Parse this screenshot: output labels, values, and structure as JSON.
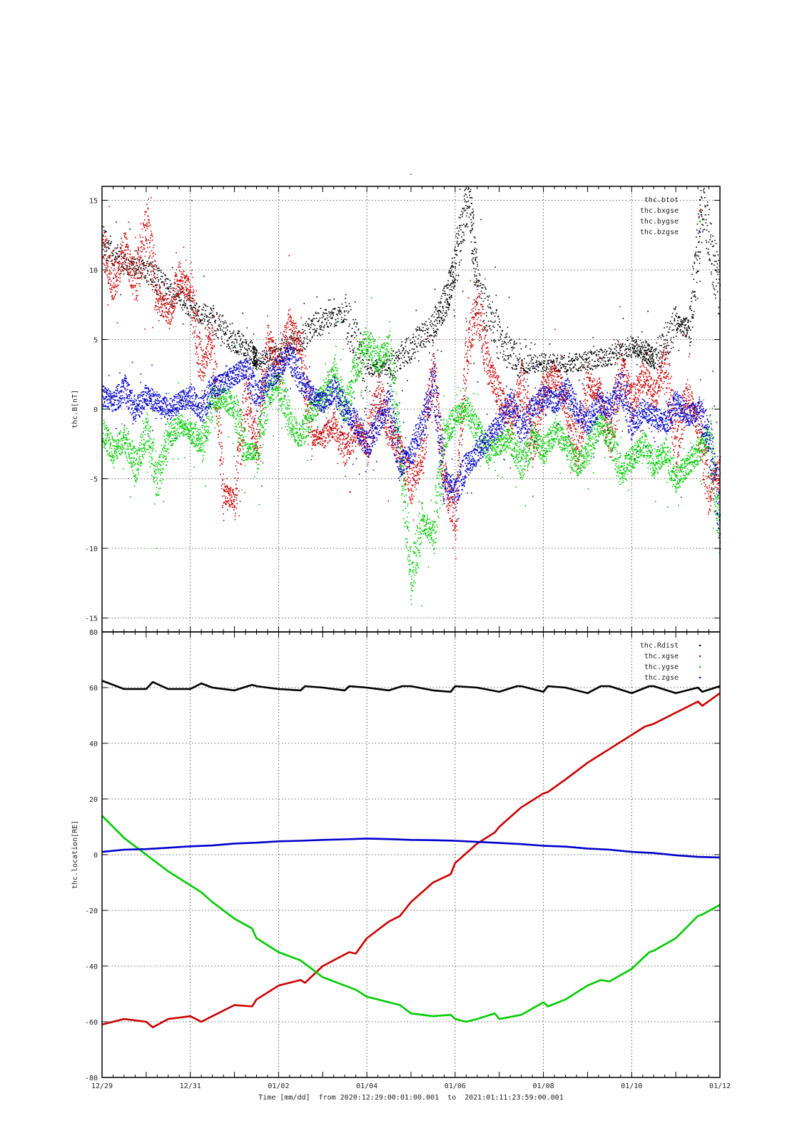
{
  "figure": {
    "title_mark": "-",
    "xlabel": "Time [mm/dd]  from 2020:12:29:00:01:00.001  to  2021:01:11:23:59:00.001"
  },
  "chart_data": [
    {
      "type": "scatter",
      "title": "",
      "xlabel": "",
      "ylabel": "thc.B[nT]",
      "x_unit": "days since 2020-12-29 00:00",
      "xlim": [
        0,
        14
      ],
      "ylim": [
        -16,
        16
      ],
      "yticks": [
        15,
        10,
        5,
        0,
        -5,
        -10,
        -15
      ],
      "grid": true,
      "legend_position": "top-right",
      "series": [
        {
          "name": "thc.btot",
          "color": "#000000",
          "x": [
            0.0,
            0.5,
            1.0,
            1.5,
            2.0,
            2.5,
            3.0,
            3.4,
            3.5,
            4.0,
            4.5,
            5.0,
            5.5,
            6.0,
            6.5,
            7.0,
            7.5,
            7.8,
            8.0,
            8.3,
            8.5,
            9.0,
            9.5,
            10.0,
            10.5,
            11.0,
            11.5,
            12.0,
            12.3,
            12.5,
            13.0,
            13.3,
            13.6,
            14.0
          ],
          "y": [
            12.0,
            10.5,
            10.0,
            8.5,
            7.5,
            6.5,
            5.0,
            4.0,
            3.5,
            4.0,
            5.0,
            6.5,
            6.8,
            3.0,
            3.0,
            4.5,
            6.0,
            8.0,
            10.5,
            15.5,
            8.5,
            5.0,
            3.2,
            3.4,
            3.3,
            3.5,
            3.8,
            4.5,
            4.2,
            3.6,
            6.2,
            5.8,
            15.0,
            8.0
          ]
        },
        {
          "name": "thc.bxgse",
          "color": "#cc0000",
          "x": [
            0.0,
            0.25,
            0.5,
            0.75,
            1.0,
            1.25,
            1.5,
            1.75,
            2.0,
            2.25,
            2.5,
            2.75,
            3.0,
            3.25,
            3.5,
            3.75,
            4.0,
            4.25,
            4.5,
            4.75,
            5.0,
            5.25,
            5.5,
            5.75,
            6.0,
            6.25,
            6.5,
            6.75,
            7.0,
            7.25,
            7.5,
            7.75,
            8.0,
            8.25,
            8.5,
            8.75,
            9.0,
            9.25,
            9.5,
            9.75,
            10.0,
            10.25,
            10.5,
            10.75,
            11.0,
            11.25,
            11.5,
            11.75,
            12.0,
            12.25,
            12.5,
            12.75,
            13.0,
            13.25,
            13.5,
            13.75,
            14.0
          ],
          "y": [
            12.0,
            9.0,
            11.5,
            9.0,
            13.0,
            8.0,
            7.0,
            9.5,
            8.5,
            3.0,
            5.0,
            -6.0,
            -6.5,
            1.0,
            -2.5,
            5.0,
            3.0,
            6.0,
            4.5,
            -2.0,
            -2.0,
            -1.0,
            -3.0,
            -1.5,
            -2.5,
            1.5,
            -1.5,
            -3.0,
            -5.5,
            -3.0,
            3.0,
            -5.0,
            -8.0,
            4.0,
            7.5,
            3.0,
            1.0,
            -1.0,
            2.0,
            -2.5,
            1.5,
            2.5,
            0.5,
            -3.0,
            2.0,
            1.0,
            -2.0,
            3.0,
            0.5,
            2.5,
            1.0,
            3.5,
            -2.5,
            1.0,
            -1.0,
            -6.0,
            -4.0
          ]
        },
        {
          "name": "thc.bygse",
          "color": "#00cc00",
          "x": [
            0.0,
            0.25,
            0.5,
            0.75,
            1.0,
            1.25,
            1.5,
            1.75,
            2.0,
            2.25,
            2.5,
            2.75,
            3.0,
            3.25,
            3.5,
            3.75,
            4.0,
            4.25,
            4.5,
            4.75,
            5.0,
            5.25,
            5.5,
            5.75,
            6.0,
            6.25,
            6.5,
            6.75,
            7.0,
            7.25,
            7.5,
            7.75,
            8.0,
            8.25,
            8.5,
            8.75,
            9.0,
            9.25,
            9.5,
            9.75,
            10.0,
            10.25,
            10.5,
            10.75,
            11.0,
            11.25,
            11.5,
            11.75,
            12.0,
            12.25,
            12.5,
            12.75,
            13.0,
            13.25,
            13.5,
            13.75,
            14.0
          ],
          "y": [
            -1.5,
            -3.0,
            -2.0,
            -4.0,
            -1.5,
            -5.0,
            -2.0,
            -1.0,
            -1.5,
            -2.5,
            0.5,
            1.0,
            0.0,
            -3.0,
            -3.0,
            1.0,
            2.0,
            -1.0,
            -2.0,
            0.0,
            1.0,
            2.5,
            0.0,
            3.0,
            5.0,
            3.5,
            4.5,
            -3.0,
            -12.0,
            -8.0,
            -9.0,
            -2.0,
            -0.5,
            0.0,
            -1.5,
            -3.0,
            -2.5,
            -2.0,
            -4.0,
            -2.0,
            -3.0,
            -1.5,
            -2.5,
            -4.0,
            -3.0,
            -1.0,
            -2.0,
            -4.5,
            -3.5,
            -2.5,
            -4.0,
            -3.0,
            -5.0,
            -4.0,
            -3.0,
            -2.0,
            -9.0
          ]
        },
        {
          "name": "thc.bzgse",
          "color": "#0000cc",
          "x": [
            0.0,
            0.25,
            0.5,
            0.75,
            1.0,
            1.25,
            1.5,
            1.75,
            2.0,
            2.25,
            2.5,
            2.75,
            3.0,
            3.25,
            3.5,
            3.75,
            4.0,
            4.25,
            4.5,
            4.75,
            5.0,
            5.25,
            5.5,
            5.75,
            6.0,
            6.25,
            6.5,
            6.75,
            7.0,
            7.25,
            7.5,
            7.75,
            8.0,
            8.25,
            8.5,
            8.75,
            9.0,
            9.25,
            9.5,
            9.75,
            10.0,
            10.25,
            10.5,
            10.75,
            11.0,
            11.25,
            11.5,
            11.75,
            12.0,
            12.25,
            12.5,
            12.75,
            13.0,
            13.25,
            13.5,
            13.75,
            14.0
          ],
          "y": [
            1.0,
            0.5,
            1.5,
            0.0,
            1.0,
            0.5,
            0.0,
            0.5,
            1.0,
            0.0,
            1.5,
            2.0,
            2.5,
            3.0,
            1.0,
            2.0,
            3.0,
            4.0,
            2.0,
            1.0,
            0.5,
            1.5,
            0.0,
            -1.0,
            -2.5,
            -1.0,
            0.5,
            -4.0,
            -3.0,
            -1.0,
            2.0,
            -5.0,
            -6.0,
            -4.0,
            -3.0,
            -2.0,
            -1.0,
            0.5,
            -1.5,
            0.0,
            1.0,
            0.5,
            1.5,
            0.0,
            -1.0,
            0.5,
            0.0,
            2.0,
            -1.0,
            0.0,
            -0.5,
            -1.0,
            0.5,
            -0.5,
            0.0,
            -2.0,
            -8.0
          ]
        }
      ]
    },
    {
      "type": "line",
      "title": "",
      "xlabel": "",
      "ylabel": "thc.location[RE]",
      "x_unit": "days since 2020-12-29 00:00",
      "xlim": [
        0,
        14
      ],
      "ylim": [
        -80,
        80
      ],
      "yticks": [
        80,
        60,
        40,
        20,
        0,
        -20,
        -40,
        -60,
        -80
      ],
      "xticks": [
        {
          "x": 0,
          "label": "12/29"
        },
        {
          "x": 2,
          "label": "12/31"
        },
        {
          "x": 4,
          "label": "01/02"
        },
        {
          "x": 6,
          "label": "01/04"
        },
        {
          "x": 8,
          "label": "01/06"
        },
        {
          "x": 10,
          "label": "01/08"
        },
        {
          "x": 12,
          "label": "01/10"
        },
        {
          "x": 14,
          "label": "01/12"
        }
      ],
      "grid": true,
      "legend_position": "top-right",
      "series": [
        {
          "name": "thc.Rdist",
          "color": "#000000",
          "x": [
            0.0,
            0.5,
            1.0,
            1.15,
            1.5,
            2.0,
            2.25,
            2.5,
            3.0,
            3.4,
            3.5,
            4.0,
            4.5,
            4.6,
            5.0,
            5.5,
            5.6,
            6.0,
            6.5,
            6.8,
            7.0,
            7.5,
            7.9,
            8.0,
            8.5,
            9.0,
            9.4,
            9.5,
            10.0,
            10.1,
            10.5,
            11.0,
            11.3,
            11.5,
            12.0,
            12.4,
            12.5,
            13.0,
            13.5,
            13.6,
            14.0
          ],
          "y": [
            62.5,
            59.5,
            59.5,
            62.0,
            59.5,
            59.5,
            61.5,
            60.0,
            59.0,
            61.0,
            60.5,
            59.5,
            59.0,
            60.5,
            60.0,
            59.0,
            60.5,
            60.0,
            59.0,
            60.5,
            60.5,
            59.0,
            58.5,
            60.5,
            60.0,
            58.5,
            60.5,
            60.5,
            58.5,
            60.5,
            60.0,
            58.0,
            60.5,
            60.5,
            58.0,
            60.5,
            60.5,
            58.0,
            60.0,
            58.5,
            60.5
          ]
        },
        {
          "name": "thc.xgse",
          "color": "#cc0000",
          "x": [
            0.0,
            0.5,
            1.0,
            1.15,
            1.5,
            2.0,
            2.25,
            2.5,
            3.0,
            3.4,
            3.5,
            4.0,
            4.5,
            4.6,
            5.0,
            5.6,
            5.75,
            6.0,
            6.5,
            6.75,
            7.0,
            7.5,
            7.9,
            8.0,
            8.5,
            8.9,
            9.0,
            9.5,
            10.0,
            10.1,
            10.5,
            11.0,
            11.25,
            11.5,
            12.0,
            12.3,
            12.5,
            13.0,
            13.5,
            13.6,
            14.0
          ],
          "y": [
            -61.0,
            -59.0,
            -60.0,
            -62.0,
            -59.0,
            -58.0,
            -60.0,
            -58.0,
            -54.0,
            -54.5,
            -52.0,
            -47.0,
            -45.0,
            -46.0,
            -40.0,
            -35.0,
            -35.5,
            -30.0,
            -24.0,
            -22.0,
            -17.0,
            -10.0,
            -7.0,
            -3.0,
            4.0,
            8.0,
            10.0,
            17.0,
            22.0,
            22.5,
            27.0,
            33.0,
            35.5,
            38.0,
            43.0,
            46.0,
            47.0,
            51.0,
            55.0,
            53.5,
            58.0
          ]
        },
        {
          "name": "thc.ygse",
          "color": "#00cc00",
          "x": [
            0.0,
            0.5,
            1.0,
            1.5,
            2.0,
            2.25,
            2.5,
            3.0,
            3.4,
            3.5,
            4.0,
            4.5,
            5.0,
            5.5,
            5.75,
            6.0,
            6.5,
            6.75,
            7.0,
            7.5,
            7.9,
            8.0,
            8.25,
            8.5,
            8.9,
            9.0,
            9.5,
            10.0,
            10.1,
            10.5,
            11.0,
            11.3,
            11.5,
            12.0,
            12.4,
            12.5,
            13.0,
            13.5,
            13.6,
            14.0
          ],
          "y": [
            14.0,
            6.0,
            0.0,
            -6.0,
            -11.0,
            -13.5,
            -17.0,
            -23.0,
            -26.5,
            -30.0,
            -35.0,
            -38.0,
            -44.0,
            -47.0,
            -48.5,
            -51.0,
            -53.0,
            -54.0,
            -57.0,
            -58.0,
            -57.5,
            -59.0,
            -60.0,
            -59.0,
            -57.0,
            -59.0,
            -57.5,
            -53.0,
            -54.5,
            -52.0,
            -47.0,
            -45.0,
            -45.5,
            -41.0,
            -35.0,
            -34.5,
            -30.0,
            -22.0,
            -21.5,
            -18.0
          ]
        },
        {
          "name": "thc.zgse",
          "color": "#0000cc",
          "x": [
            0.0,
            0.5,
            1.0,
            1.5,
            2.0,
            2.5,
            3.0,
            3.5,
            4.0,
            4.5,
            5.0,
            5.5,
            6.0,
            6.5,
            7.0,
            7.5,
            8.0,
            8.5,
            9.0,
            9.5,
            10.0,
            10.5,
            11.0,
            11.5,
            12.0,
            12.5,
            13.0,
            13.5,
            14.0
          ],
          "y": [
            1.0,
            1.8,
            2.0,
            2.5,
            3.0,
            3.3,
            4.0,
            4.3,
            4.8,
            5.0,
            5.3,
            5.5,
            5.8,
            5.6,
            5.3,
            5.2,
            5.0,
            4.6,
            4.2,
            3.8,
            3.2,
            2.9,
            2.2,
            1.8,
            1.0,
            0.6,
            -0.2,
            -0.8,
            -1.0
          ]
        }
      ]
    }
  ]
}
